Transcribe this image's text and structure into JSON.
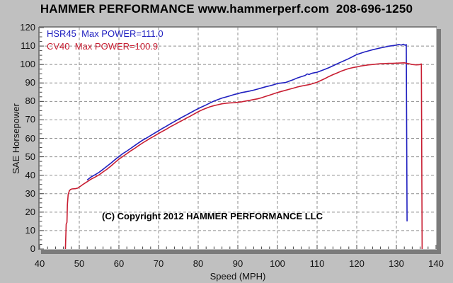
{
  "header": {
    "title": "HAMMER PERFORMANCE www.hammerperf.com  208-696-1250"
  },
  "annotation": {
    "copyright": "(C) Copyright 2012 HAMMER PERFORMANCE LLC"
  },
  "chart_data": {
    "type": "line",
    "xlabel": "Speed (MPH)",
    "ylabel": "SAE Horsepower",
    "xlim": [
      40,
      140
    ],
    "ylim": [
      0,
      120
    ],
    "x_ticks": [
      40,
      50,
      60,
      70,
      80,
      90,
      100,
      110,
      120,
      130,
      140
    ],
    "y_ticks": [
      0,
      10,
      20,
      30,
      40,
      50,
      60,
      70,
      80,
      90,
      100,
      110,
      120
    ],
    "x_minor_step": 2,
    "y_minor_step": 2.5,
    "grid": "dashed",
    "grid_color": "#8e8e8e",
    "plot_bg": "#ffffff",
    "frame_color": "#6a6a6a",
    "shadow_color": "#7b7b7b",
    "tick_color": "#444444",
    "legend_position": "top-left",
    "series": [
      {
        "name": "HSR45",
        "label": "HSR45  Max POWER=111.0",
        "max_power": 111.0,
        "color": "#2020c0",
        "points": [
          [
            52,
            37.4
          ],
          [
            53,
            39.1
          ],
          [
            54,
            40.3
          ],
          [
            55,
            41.6
          ],
          [
            56,
            43.2
          ],
          [
            57,
            44.9
          ],
          [
            58,
            46.6
          ],
          [
            59,
            48.4
          ],
          [
            60,
            50.2
          ],
          [
            61,
            51.7
          ],
          [
            62,
            53.1
          ],
          [
            63,
            54.6
          ],
          [
            64,
            56.1
          ],
          [
            65,
            57.6
          ],
          [
            66,
            59.0
          ],
          [
            67,
            60.2
          ],
          [
            68,
            61.5
          ],
          [
            69,
            62.8
          ],
          [
            70,
            64.1
          ],
          [
            71,
            65.4
          ],
          [
            72,
            66.6
          ],
          [
            73,
            67.9
          ],
          [
            74,
            69.1
          ],
          [
            75,
            70.3
          ],
          [
            76,
            71.5
          ],
          [
            77,
            72.6
          ],
          [
            78,
            73.8
          ],
          [
            79,
            75.0
          ],
          [
            80,
            76.1
          ],
          [
            81,
            77.1
          ],
          [
            82,
            78.1
          ],
          [
            83,
            79.2
          ],
          [
            84,
            80.2
          ],
          [
            85,
            81.0
          ],
          [
            86,
            81.8
          ],
          [
            87,
            82.4
          ],
          [
            88,
            83.0
          ],
          [
            89,
            83.7
          ],
          [
            90,
            84.2
          ],
          [
            91,
            84.8
          ],
          [
            92,
            85.2
          ],
          [
            93,
            85.6
          ],
          [
            94,
            86.1
          ],
          [
            95,
            86.7
          ],
          [
            96,
            87.3
          ],
          [
            97,
            87.9
          ],
          [
            98,
            88.4
          ],
          [
            99,
            89.0
          ],
          [
            100,
            89.7
          ],
          [
            101,
            90.0
          ],
          [
            102,
            90.2
          ],
          [
            103,
            91.0
          ],
          [
            104,
            91.8
          ],
          [
            105,
            92.7
          ],
          [
            106,
            93.4
          ],
          [
            107,
            94.1
          ],
          [
            107.5,
            94.9
          ],
          [
            108,
            94.6
          ],
          [
            108.5,
            95.1
          ],
          [
            109,
            95.4
          ],
          [
            110,
            95.8
          ],
          [
            111,
            96.6
          ],
          [
            112,
            97.4
          ],
          [
            113,
            98.3
          ],
          [
            114,
            99.3
          ],
          [
            115,
            100.3
          ],
          [
            116,
            101.3
          ],
          [
            117,
            102.2
          ],
          [
            118,
            103.2
          ],
          [
            119,
            104.3
          ],
          [
            120,
            105.4
          ],
          [
            121,
            106.1
          ],
          [
            122,
            106.8
          ],
          [
            123,
            107.4
          ],
          [
            124,
            108.0
          ],
          [
            125,
            108.5
          ],
          [
            126,
            109.0
          ],
          [
            127,
            109.4
          ],
          [
            128,
            109.9
          ],
          [
            129,
            110.2
          ],
          [
            130,
            110.5
          ],
          [
            130.6,
            110.9
          ],
          [
            131.2,
            110.5
          ],
          [
            131.8,
            111.0
          ],
          [
            132.2,
            110.4
          ],
          [
            132.5,
            110.8
          ],
          [
            132.7,
            15
          ]
        ]
      },
      {
        "name": "CV40",
        "label": "CV40  Max POWER=100.9",
        "max_power": 100.9,
        "color": "#c81e32",
        "points": [
          [
            46.5,
            0
          ],
          [
            46.6,
            7
          ],
          [
            46.7,
            13.5
          ],
          [
            46.9,
            14.5
          ],
          [
            47.0,
            24
          ],
          [
            47.2,
            29.5
          ],
          [
            47.5,
            31.6
          ],
          [
            47.8,
            32.3
          ],
          [
            48.2,
            32.6
          ],
          [
            49,
            32.7
          ],
          [
            49.6,
            33.0
          ],
          [
            50,
            33.6
          ],
          [
            50.5,
            34.3
          ],
          [
            51,
            35.1
          ],
          [
            52,
            36.5
          ],
          [
            53,
            37.9
          ],
          [
            54,
            39.0
          ],
          [
            55,
            40.2
          ],
          [
            56,
            41.8
          ],
          [
            57,
            43.3
          ],
          [
            58,
            45.0
          ],
          [
            59,
            46.9
          ],
          [
            60,
            48.7
          ],
          [
            61,
            50.2
          ],
          [
            62,
            51.7
          ],
          [
            63,
            53.2
          ],
          [
            64,
            54.6
          ],
          [
            65,
            56.1
          ],
          [
            66,
            57.5
          ],
          [
            67,
            58.8
          ],
          [
            68,
            60.1
          ],
          [
            69,
            61.3
          ],
          [
            70,
            62.6
          ],
          [
            71,
            63.8
          ],
          [
            72,
            65.0
          ],
          [
            73,
            66.3
          ],
          [
            74,
            67.4
          ],
          [
            75,
            68.6
          ],
          [
            76,
            69.7
          ],
          [
            77,
            70.9
          ],
          [
            78,
            72.0
          ],
          [
            79,
            73.2
          ],
          [
            80,
            74.4
          ],
          [
            81,
            75.4
          ],
          [
            82,
            76.3
          ],
          [
            83,
            77.1
          ],
          [
            84,
            77.7
          ],
          [
            85,
            78.2
          ],
          [
            86,
            78.7
          ],
          [
            87,
            79.0
          ],
          [
            88,
            79.2
          ],
          [
            89,
            79.3
          ],
          [
            90,
            79.5
          ],
          [
            91,
            79.8
          ],
          [
            92,
            80.2
          ],
          [
            93,
            80.6
          ],
          [
            94,
            81.0
          ],
          [
            95,
            81.4
          ],
          [
            96,
            82.0
          ],
          [
            97,
            82.7
          ],
          [
            98,
            83.4
          ],
          [
            99,
            84.1
          ],
          [
            100,
            84.8
          ],
          [
            101,
            85.4
          ],
          [
            102,
            86.0
          ],
          [
            103,
            86.6
          ],
          [
            104,
            87.2
          ],
          [
            105,
            87.8
          ],
          [
            106,
            88.3
          ],
          [
            107,
            88.7
          ],
          [
            108,
            89.1
          ],
          [
            109,
            89.7
          ],
          [
            110,
            90.4
          ],
          [
            111,
            91.4
          ],
          [
            112,
            92.4
          ],
          [
            113,
            93.5
          ],
          [
            114,
            94.5
          ],
          [
            115,
            95.4
          ],
          [
            116,
            96.3
          ],
          [
            117,
            97.1
          ],
          [
            118,
            97.8
          ],
          [
            119,
            98.3
          ],
          [
            120,
            98.7
          ],
          [
            121,
            99.2
          ],
          [
            122,
            99.5
          ],
          [
            123,
            99.8
          ],
          [
            124,
            100.0
          ],
          [
            125,
            100.2
          ],
          [
            126,
            100.4
          ],
          [
            127,
            100.5
          ],
          [
            128,
            100.6
          ],
          [
            129,
            100.6
          ],
          [
            130,
            100.7
          ],
          [
            131,
            100.8
          ],
          [
            132,
            100.9
          ],
          [
            133,
            100.5
          ],
          [
            134,
            100.0
          ],
          [
            135,
            99.8
          ],
          [
            135.8,
            99.9
          ],
          [
            136.3,
            100.3
          ],
          [
            136.5,
            0
          ]
        ]
      }
    ]
  }
}
